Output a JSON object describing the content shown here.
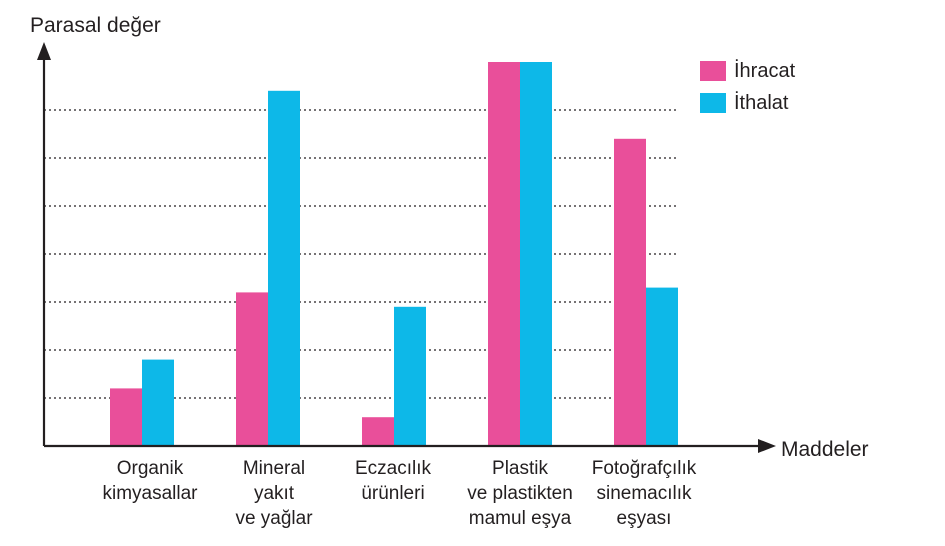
{
  "chart_data": {
    "type": "bar",
    "ylabel": "Parasal değer",
    "xlabel": "Maddeler",
    "categories": [
      "Organik\nkimyasallar",
      "Mineral\nyakıt\nve yağlar",
      "Eczacılık\nürünleri",
      "Plastik\nve plastikten\nmamul eşya",
      "Fotoğrafçılık\nsinemacılık\neşyası"
    ],
    "series": [
      {
        "name": "İhracat",
        "color": "#e94f9a",
        "values": [
          1.2,
          3.2,
          0.6,
          8.0,
          6.4
        ]
      },
      {
        "name": "İthalat",
        "color": "#0db8e8",
        "values": [
          1.8,
          7.4,
          2.9,
          8.0,
          3.3
        ]
      }
    ],
    "ylim": [
      0,
      8.5
    ],
    "grid": "dotted",
    "legend": "top-right"
  }
}
